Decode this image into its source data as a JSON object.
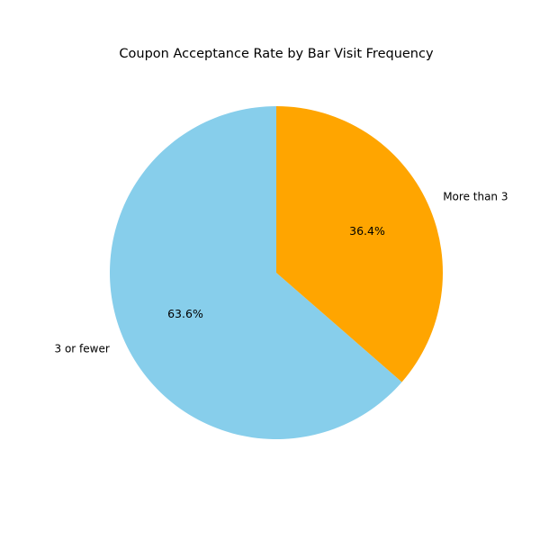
{
  "chart_data": {
    "type": "pie",
    "title": "Coupon Acceptance Rate by Bar Visit Frequency",
    "start_angle_deg": 90,
    "direction": "counterclockwise",
    "slices": [
      {
        "label": "3 or fewer",
        "value": 63.6,
        "pct_label": "63.6%",
        "color": "#87CEEB"
      },
      {
        "label": "More than 3",
        "value": 36.4,
        "pct_label": "36.4%",
        "color": "#FFA500"
      }
    ]
  }
}
